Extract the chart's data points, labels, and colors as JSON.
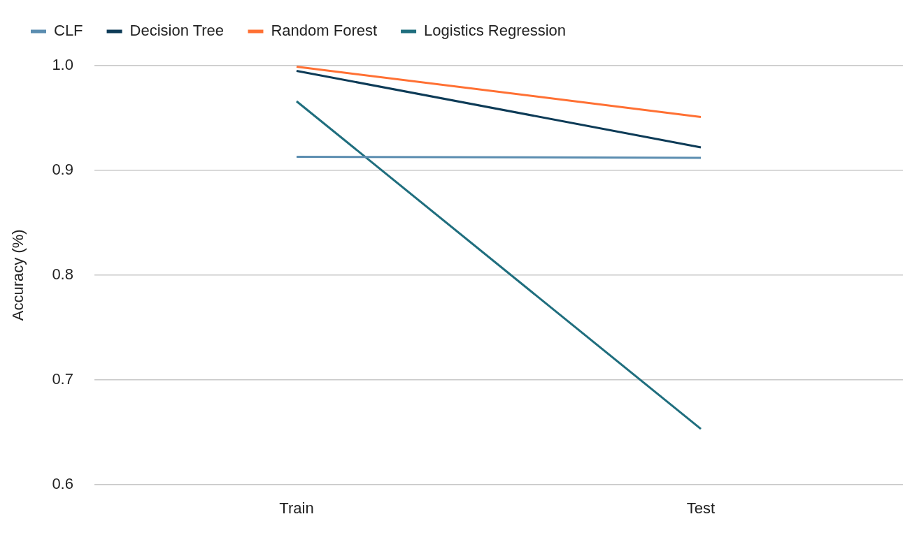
{
  "chart_data": {
    "type": "line",
    "ylabel": "Accuracy (%)",
    "categories": [
      "Train",
      "Test"
    ],
    "series": [
      {
        "name": "CLF",
        "color": "#5b8db0",
        "values": [
          0.913,
          0.912
        ]
      },
      {
        "name": "Decision Tree",
        "color": "#0d3b57",
        "values": [
          0.995,
          0.922
        ]
      },
      {
        "name": "Random Forest",
        "color": "#ff7033",
        "values": [
          0.999,
          0.951
        ]
      },
      {
        "name": "Logistics Regression",
        "color": "#1f6e7e",
        "values": [
          0.966,
          0.653
        ]
      }
    ],
    "ylim": [
      0.6,
      1.0
    ],
    "yticks": [
      0.6,
      0.7,
      0.8,
      0.9,
      {
        "value": 1.0,
        "label": "1.0"
      }
    ],
    "grid": "y",
    "legend": "top left",
    "marker": "none",
    "line_style": "solid"
  }
}
